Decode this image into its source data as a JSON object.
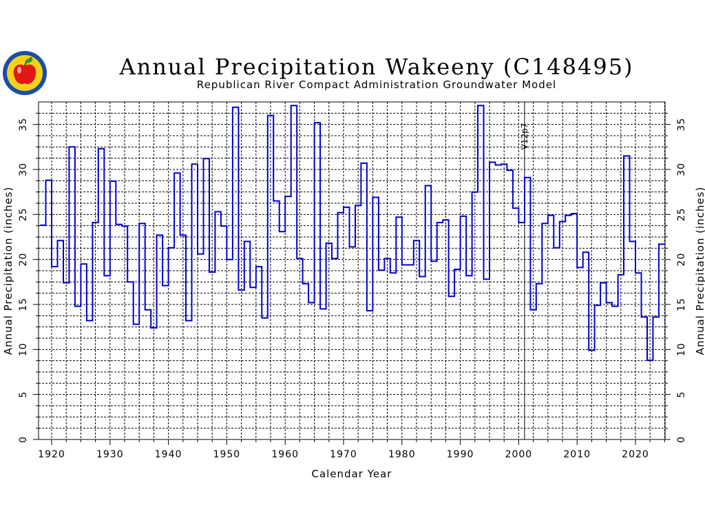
{
  "chart_data": {
    "type": "line",
    "step": true,
    "title": "Annual Precipitation Wakeeny (C148495)",
    "subtitle": "Republican River Compact Administration Groundwater Model",
    "xlabel": "Calendar Year",
    "ylabel": "Annual Precipitation (inches)",
    "ylabel_right": "Annual Precipitation (inches)",
    "xlim": [
      1918,
      2025
    ],
    "ylim": [
      0,
      38
    ],
    "x_ticks": [
      "1920",
      "1930",
      "1940",
      "1950",
      "1960",
      "1970",
      "1980",
      "1990",
      "2000",
      "2010",
      "2020"
    ],
    "y_ticks": [
      "0",
      "5",
      "10",
      "15",
      "20",
      "25",
      "30",
      "35"
    ],
    "grid": true,
    "vertical_marker": {
      "x": 2001,
      "label": "V12p7"
    },
    "series": [
      {
        "color": "#0000cc",
        "x": [
          1918,
          1919,
          1920,
          1921,
          1922,
          1923,
          1924,
          1925,
          1926,
          1927,
          1928,
          1929,
          1930,
          1931,
          1932,
          1933,
          1934,
          1935,
          1936,
          1937,
          1938,
          1939,
          1940,
          1941,
          1942,
          1943,
          1944,
          1945,
          1946,
          1947,
          1948,
          1949,
          1950,
          1951,
          1952,
          1953,
          1954,
          1955,
          1956,
          1957,
          1958,
          1959,
          1960,
          1961,
          1962,
          1963,
          1964,
          1965,
          1966,
          1967,
          1968,
          1969,
          1970,
          1971,
          1972,
          1973,
          1974,
          1975,
          1976,
          1977,
          1978,
          1979,
          1980,
          1981,
          1982,
          1983,
          1984,
          1985,
          1986,
          1987,
          1988,
          1989,
          1990,
          1991,
          1992,
          1993,
          1994,
          1995,
          1996,
          1997,
          1998,
          1999,
          2000,
          2001,
          2002,
          2003,
          2004,
          2005,
          2006,
          2007,
          2008,
          2009,
          2010,
          2011,
          2012,
          2013,
          2014,
          2015,
          2016,
          2017,
          2018,
          2019,
          2020,
          2021,
          2022,
          2023,
          2024
        ],
        "values": [
          23.8,
          28.8,
          19.2,
          22.1,
          17.4,
          32.5,
          14.8,
          19.5,
          13.2,
          24.1,
          32.3,
          18.2,
          28.7,
          23.9,
          23.7,
          17.5,
          12.8,
          24.0,
          14.4,
          12.4,
          22.7,
          17.1,
          21.3,
          29.6,
          22.7,
          13.2,
          30.6,
          20.6,
          31.2,
          18.6,
          25.3,
          23.7,
          20.0,
          36.9,
          16.6,
          22.0,
          16.9,
          19.2,
          13.5,
          36.0,
          26.5,
          23.1,
          27.0,
          37.1,
          20.1,
          17.3,
          15.2,
          35.2,
          14.5,
          21.8,
          20.1,
          25.2,
          25.8,
          21.4,
          26.0,
          30.7,
          14.3,
          26.9,
          18.8,
          20.1,
          18.5,
          24.7,
          19.4,
          19.4,
          22.1,
          18.1,
          28.2,
          19.8,
          24.1,
          24.4,
          15.9,
          18.9,
          24.8,
          18.2,
          27.5,
          37.1,
          17.8,
          30.8,
          30.5,
          30.6,
          29.9,
          25.7,
          24.1,
          29.1,
          14.4,
          17.3,
          24.0,
          24.9,
          21.3,
          24.2,
          24.9,
          25.1,
          19.1,
          20.8,
          9.9,
          14.9,
          17.4,
          15.2,
          14.8,
          18.3,
          31.5,
          22.0,
          18.5,
          13.6,
          8.8,
          13.6,
          21.7
        ]
      }
    ]
  },
  "logo": {
    "colors": {
      "ring": "#1a4ea8",
      "fill": "#f5d21a",
      "apple": "#e01818",
      "leaf": "#2a9a2a"
    }
  }
}
